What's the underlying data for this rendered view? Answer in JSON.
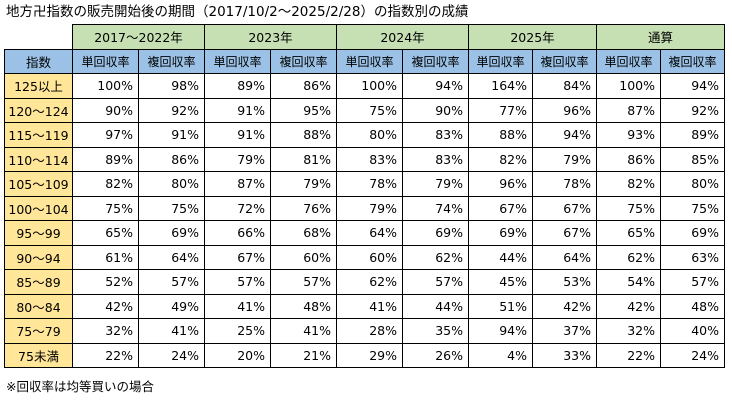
{
  "title": "地方卍指数の販売開始後の期間（2017/10/2～2025/2/28）の指数別の成績",
  "table": {
    "index_header": "指数",
    "periods": [
      "2017～2022年",
      "2023年",
      "2024年",
      "2025年",
      "通算"
    ],
    "sub_headers": [
      "単回収率",
      "複回収率"
    ],
    "rows": [
      {
        "index": "125以上",
        "values": [
          "100%",
          "98%",
          "89%",
          "86%",
          "100%",
          "94%",
          "164%",
          "84%",
          "100%",
          "94%"
        ]
      },
      {
        "index": "120～124",
        "values": [
          "90%",
          "92%",
          "91%",
          "95%",
          "75%",
          "90%",
          "77%",
          "96%",
          "87%",
          "92%"
        ]
      },
      {
        "index": "115～119",
        "values": [
          "97%",
          "91%",
          "91%",
          "88%",
          "80%",
          "83%",
          "88%",
          "94%",
          "93%",
          "89%"
        ]
      },
      {
        "index": "110～114",
        "values": [
          "89%",
          "86%",
          "79%",
          "81%",
          "83%",
          "83%",
          "82%",
          "79%",
          "86%",
          "85%"
        ]
      },
      {
        "index": "105～109",
        "values": [
          "82%",
          "80%",
          "87%",
          "79%",
          "78%",
          "79%",
          "96%",
          "78%",
          "82%",
          "80%"
        ]
      },
      {
        "index": "100～104",
        "values": [
          "75%",
          "75%",
          "72%",
          "76%",
          "79%",
          "74%",
          "67%",
          "67%",
          "75%",
          "75%"
        ]
      },
      {
        "index": "95～99",
        "values": [
          "65%",
          "69%",
          "66%",
          "68%",
          "64%",
          "69%",
          "69%",
          "67%",
          "65%",
          "69%"
        ]
      },
      {
        "index": "90～94",
        "values": [
          "61%",
          "64%",
          "67%",
          "60%",
          "60%",
          "62%",
          "44%",
          "64%",
          "62%",
          "63%"
        ]
      },
      {
        "index": "85～89",
        "values": [
          "52%",
          "57%",
          "57%",
          "57%",
          "62%",
          "57%",
          "45%",
          "53%",
          "54%",
          "57%"
        ]
      },
      {
        "index": "80～84",
        "values": [
          "42%",
          "49%",
          "41%",
          "48%",
          "41%",
          "44%",
          "51%",
          "42%",
          "42%",
          "48%"
        ]
      },
      {
        "index": "75～79",
        "values": [
          "32%",
          "41%",
          "25%",
          "41%",
          "28%",
          "35%",
          "94%",
          "37%",
          "32%",
          "40%"
        ]
      },
      {
        "index": "75未満",
        "values": [
          "22%",
          "24%",
          "20%",
          "21%",
          "29%",
          "26%",
          "4%",
          "33%",
          "22%",
          "24%"
        ]
      }
    ]
  },
  "note": "※回収率は均等買いの場合"
}
